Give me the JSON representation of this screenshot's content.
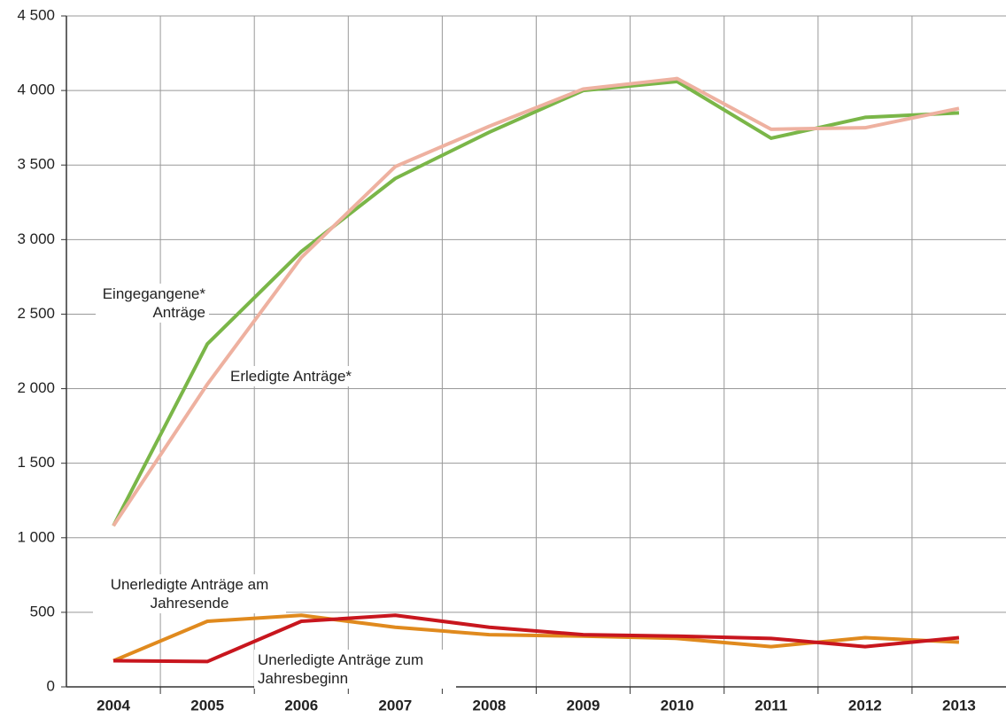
{
  "chart_data": {
    "type": "line",
    "categories": [
      "2004",
      "2005",
      "2006",
      "2007",
      "2008",
      "2009",
      "2010",
      "2011",
      "2012",
      "2013"
    ],
    "series": [
      {
        "name": "Eingegangene* Anträge",
        "color": "#7ab648",
        "values": [
          1080,
          2300,
          2920,
          3410,
          3720,
          4000,
          4060,
          3680,
          3820,
          3850
        ]
      },
      {
        "name": "Erledigte Anträge*",
        "color": "#eeb1a0",
        "values": [
          1080,
          2030,
          2880,
          3490,
          3760,
          4010,
          4080,
          3740,
          3750,
          3880
        ]
      },
      {
        "name": "Unerledigte Anträge am Jahresende",
        "color": "#e08a1e",
        "values": [
          175,
          440,
          480,
          400,
          350,
          340,
          325,
          270,
          330,
          300
        ]
      },
      {
        "name": "Unerledigte Anträge zum Jahresbeginn",
        "color": "#c8161e",
        "values": [
          175,
          170,
          440,
          480,
          400,
          350,
          340,
          325,
          270,
          330
        ]
      }
    ],
    "ylim": [
      0,
      4500
    ],
    "yticks": [
      0,
      500,
      {
        "value": 1000,
        "label": "1 000"
      },
      {
        "value": 1500,
        "label": "1 500"
      },
      {
        "value": 2000,
        "label": "2 000"
      },
      {
        "value": 2500,
        "label": "2 500"
      },
      {
        "value": 3000,
        "label": "3 000"
      },
      {
        "value": 3500,
        "label": "3 500"
      },
      {
        "value": 4000,
        "label": "4 000"
      },
      {
        "value": 4500,
        "label": "4 500"
      }
    ],
    "grid": true
  }
}
